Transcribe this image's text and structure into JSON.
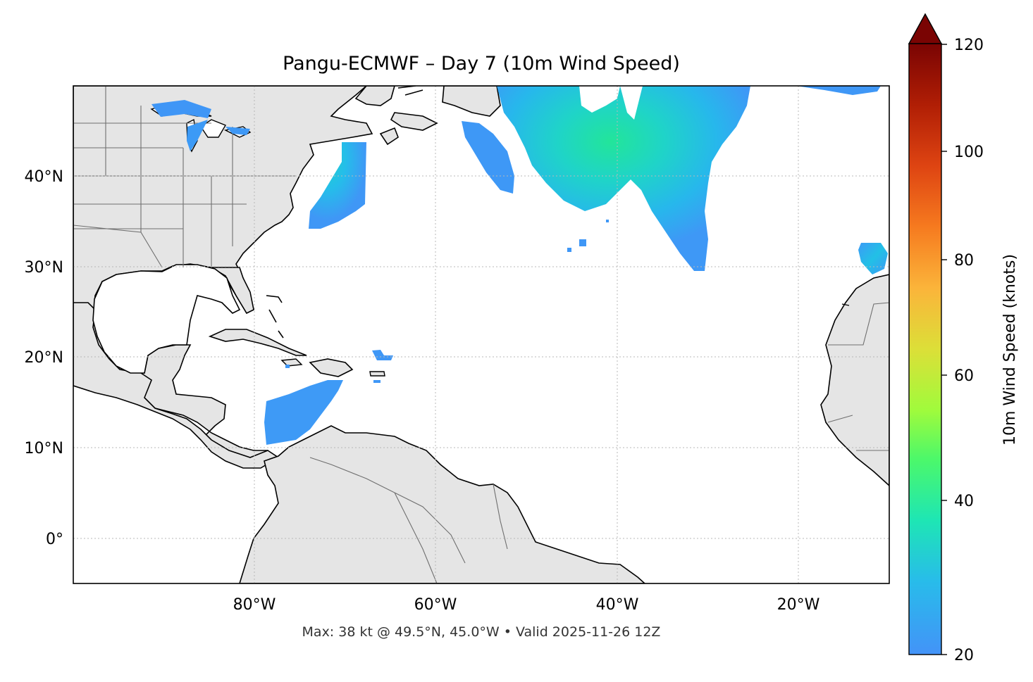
{
  "title": "Pangu-ECMWF – Day 7 (10m Wind Speed)",
  "footer": "Max: 38 kt @ 49.5°N, 45.0°W • Valid 2025-11-26 12Z",
  "map": {
    "lon_range": [
      -100,
      -10
    ],
    "lat_range": [
      -5,
      50
    ],
    "x_ticks": [
      "80°W",
      "60°W",
      "40°W",
      "20°W"
    ],
    "y_ticks": [
      "40°N",
      "30°N",
      "20°N",
      "10°N",
      "0°"
    ],
    "land_color": "#e5e5e5",
    "grid": true
  },
  "colorbar": {
    "label": "10m Wind Speed (knots)",
    "ticks": [
      "120",
      "100",
      "80",
      "60",
      "40",
      "20"
    ],
    "range": [
      20,
      120
    ],
    "extend": "max",
    "colormap": "turbo-like",
    "extend_color": "#7a0403"
  },
  "wind_features": [
    {
      "name": "North Atlantic jet area",
      "speed_kt": 38
    },
    {
      "name": "Southern Caribbean",
      "speed_kt": 22
    },
    {
      "name": "Off US East Coast",
      "speed_kt": 24
    }
  ]
}
